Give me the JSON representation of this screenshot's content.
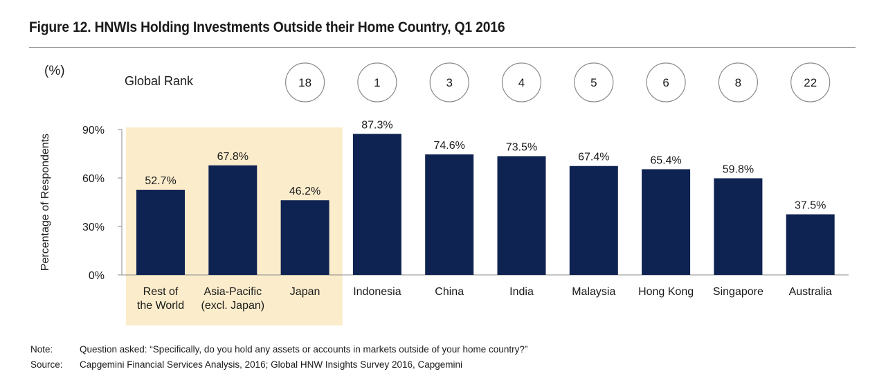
{
  "title": "Figure 12. HNWIs Holding Investments Outside their Home Country, Q1 2016",
  "unit_label": "(%)",
  "rank_label": "Global Rank",
  "note": {
    "label": "Note:",
    "text": "Question asked: “Specifically, do you hold any assets or accounts in markets outside of your home country?”"
  },
  "source": {
    "label": "Source:",
    "text": "Capgemini Financial Services Analysis, 2016; Global HNW Insights Survey 2016, Capgemini"
  },
  "colors": {
    "bar": "#0f2352",
    "highlight": "#fbeccb",
    "circle": "#8a8a8a",
    "axis": "#8a8a8a"
  },
  "chart_data": {
    "type": "bar",
    "ylabel": "Percentage of Respondents",
    "ylim": [
      0,
      90
    ],
    "yticks": [
      0,
      30,
      60,
      90
    ],
    "ytick_labels": [
      "0%",
      "30%",
      "60%",
      "90%"
    ],
    "highlight_categories": [
      0,
      1,
      2
    ],
    "categories": [
      [
        "Rest of",
        "the World"
      ],
      [
        "Asia-Pacific",
        "(excl. Japan)"
      ],
      [
        "Japan"
      ],
      [
        "Indonesia"
      ],
      [
        "China"
      ],
      [
        "India"
      ],
      [
        "Malaysia"
      ],
      [
        "Hong Kong"
      ],
      [
        "Singapore"
      ],
      [
        "Australia"
      ]
    ],
    "values": [
      52.7,
      67.8,
      46.2,
      87.3,
      74.6,
      73.5,
      67.4,
      65.4,
      59.8,
      37.5
    ],
    "value_labels": [
      "52.7%",
      "67.8%",
      "46.2%",
      "87.3%",
      "74.6%",
      "73.5%",
      "67.4%",
      "65.4%",
      "59.8%",
      "37.5%"
    ],
    "global_rank": [
      "",
      "",
      "18",
      "1",
      "3",
      "4",
      "5",
      "6",
      "8",
      "22"
    ]
  }
}
